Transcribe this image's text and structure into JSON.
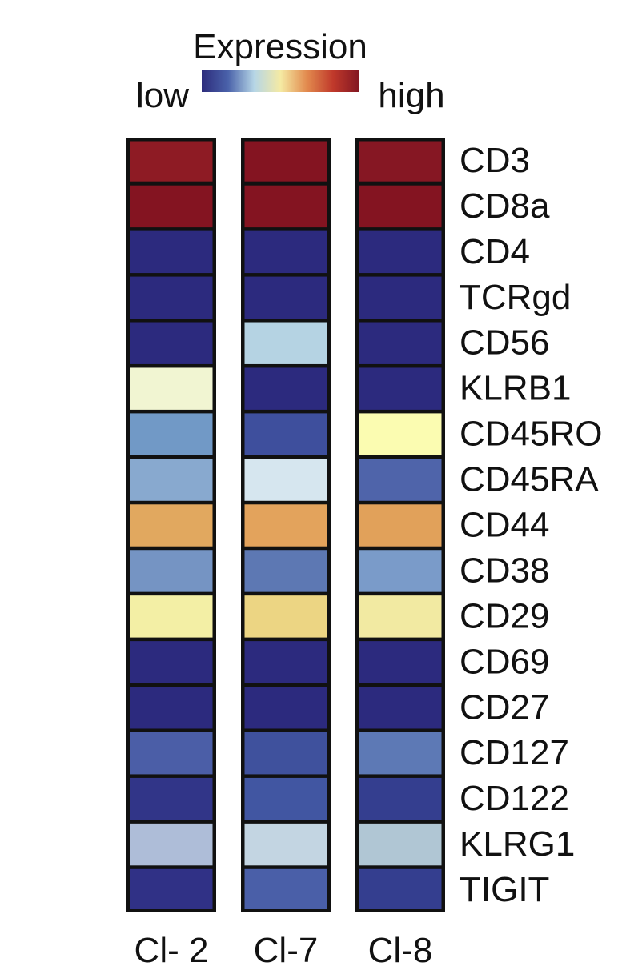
{
  "chart_data": {
    "type": "heatmap",
    "title": "Expression",
    "legend": {
      "low_label": "low",
      "high_label": "high",
      "gradient": [
        "#2d2c7c",
        "#4a62aa",
        "#b6d6e6",
        "#f5eaa3",
        "#e28a4e",
        "#c0392b",
        "#821622"
      ]
    },
    "columns": [
      "Cl- 2",
      "Cl-7",
      "Cl-8"
    ],
    "rows": [
      "CD3",
      "CD8a",
      "CD4",
      "TCRgd",
      "CD56",
      "KLRB1",
      "CD45RO",
      "CD45RA",
      "CD44",
      "CD38",
      "CD29",
      "CD69",
      "CD27",
      "CD127",
      "CD122",
      "KLRG1",
      "TIGIT"
    ],
    "cell_colors": [
      [
        "#8e1b24",
        "#841421",
        "#861723"
      ],
      [
        "#841421",
        "#841421",
        "#841421"
      ],
      [
        "#2c2a7e",
        "#2c2a7e",
        "#2c2a7e"
      ],
      [
        "#2c2a7e",
        "#2c2a7e",
        "#2c2a7e"
      ],
      [
        "#2c2a7e",
        "#b5d3e3",
        "#2c2a7e"
      ],
      [
        "#f1f5d2",
        "#2c2a7e",
        "#2c2a7e"
      ],
      [
        "#7199c6",
        "#3e4f9d",
        "#fbfcb1"
      ],
      [
        "#88a9cf",
        "#d6e6ef",
        "#4f64aa"
      ],
      [
        "#e1a85f",
        "#e3a35c",
        "#e1a15a"
      ],
      [
        "#7594c3",
        "#5d78b3",
        "#7a9bc9"
      ],
      [
        "#f3efa5",
        "#ecd583",
        "#f2eaa2"
      ],
      [
        "#2c2a7e",
        "#2c2a7e",
        "#2c2a7e"
      ],
      [
        "#2c2a7e",
        "#2c2a7e",
        "#2c2a7e"
      ],
      [
        "#4b5ea7",
        "#3f519d",
        "#5d79b5"
      ],
      [
        "#313588",
        "#4156a2",
        "#343e8f"
      ],
      [
        "#aebdd8",
        "#c3d5e2",
        "#b0c6d4"
      ],
      [
        "#303186",
        "#4a5fa8",
        "#343e8f"
      ]
    ]
  }
}
